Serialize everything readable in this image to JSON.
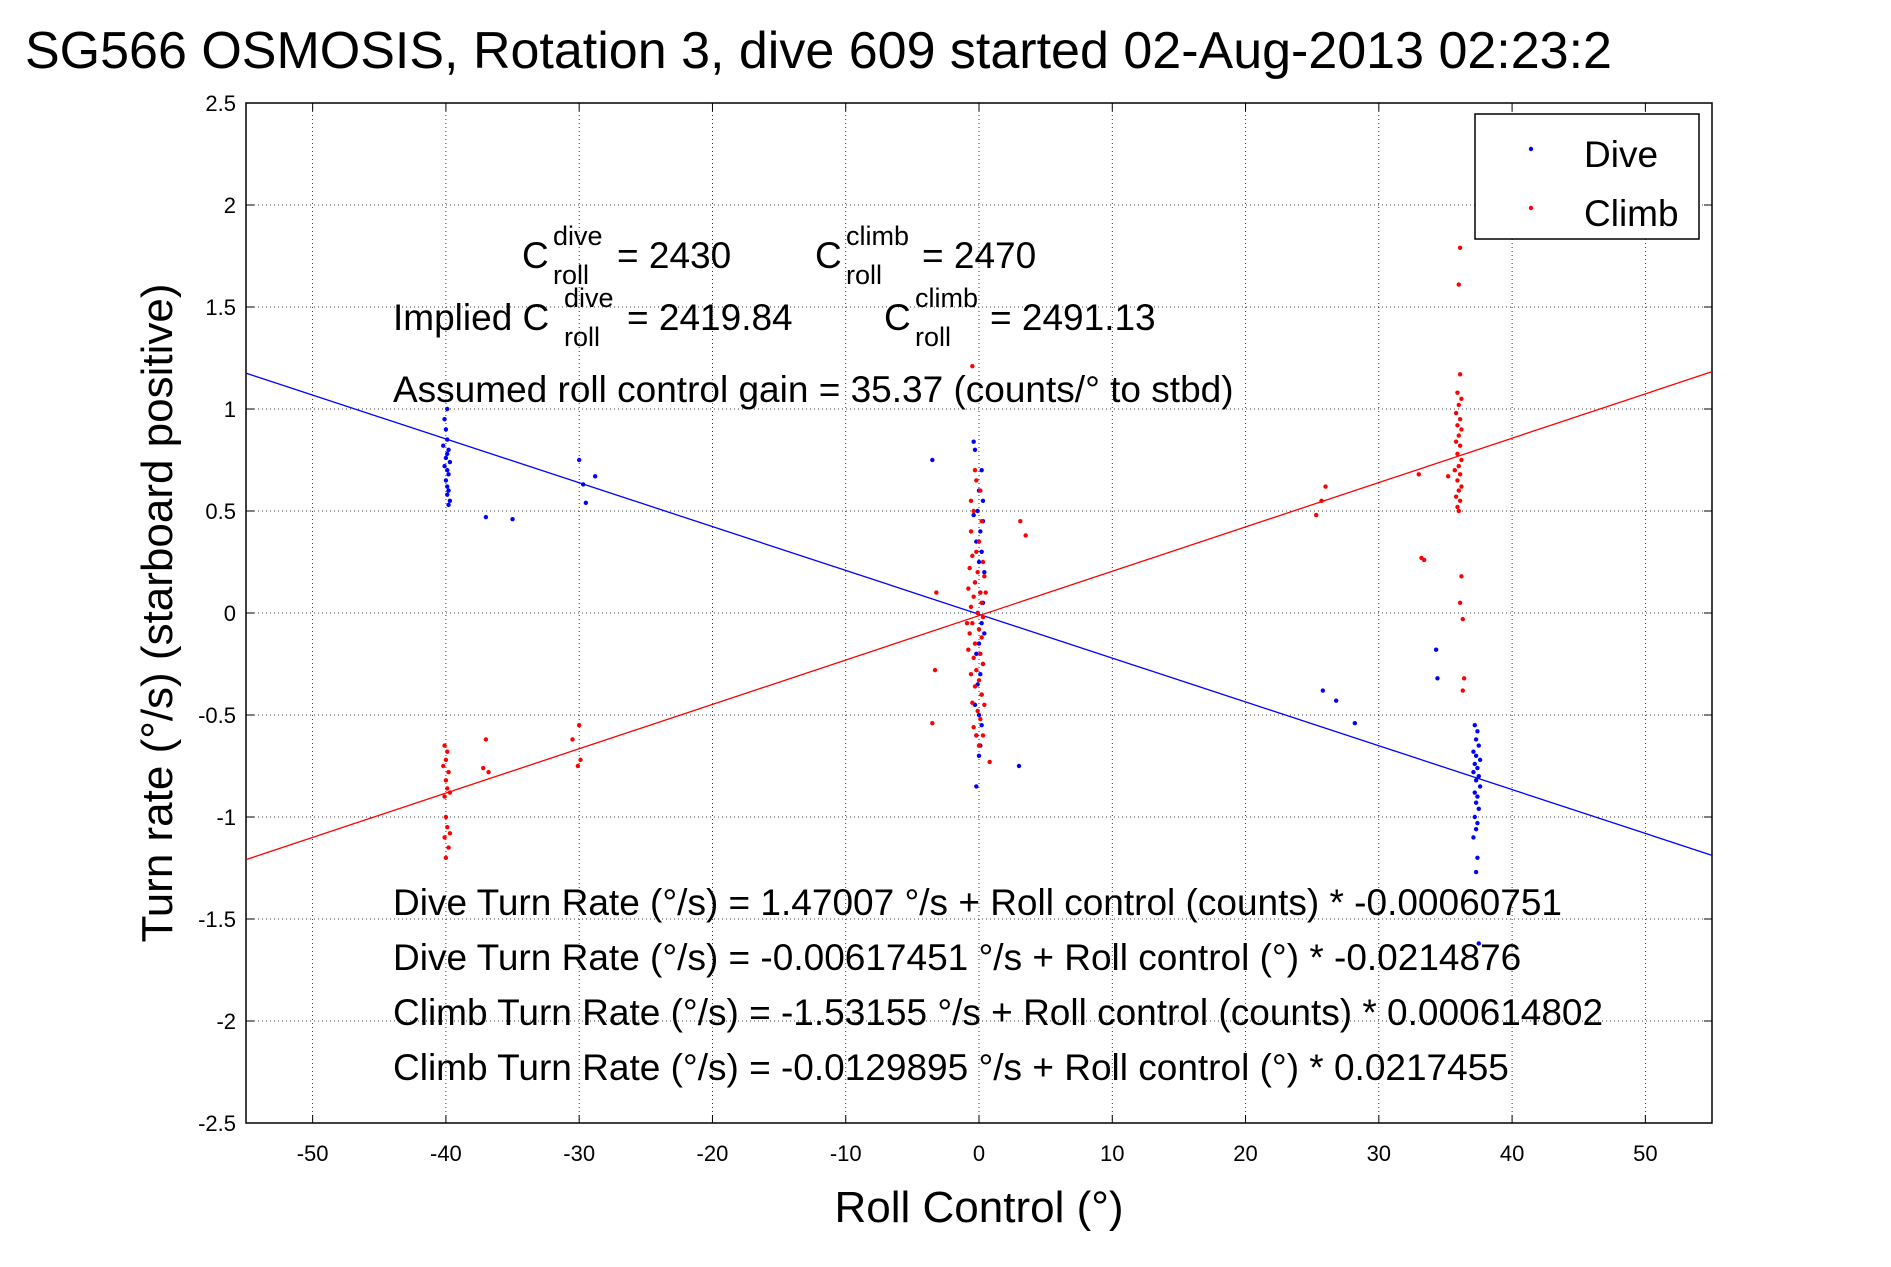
{
  "chart_data": {
    "type": "scatter",
    "title": "SG566 OSMOSIS, Rotation 3, dive 609 started 02-Aug-2013 02:23:2",
    "xlabel": "Roll Control (°)",
    "ylabel": "Turn rate (°/s)  (starboard positive)",
    "xlim": [
      -55,
      55
    ],
    "ylim": [
      -2.5,
      2.5
    ],
    "xticks": [
      -50,
      -40,
      -30,
      -20,
      -10,
      0,
      10,
      20,
      30,
      40,
      50
    ],
    "yticks": [
      -2.5,
      -2,
      -1.5,
      -1,
      -0.5,
      0,
      0.5,
      1,
      1.5,
      2,
      2.5
    ],
    "xtick_labels": [
      "-50",
      "-40",
      "-30",
      "-20",
      "-10",
      "0",
      "10",
      "20",
      "30",
      "40",
      "50"
    ],
    "ytick_labels": [
      "-2.5",
      "-2",
      "-1.5",
      "-1",
      "-0.5",
      "0",
      "0.5",
      "1",
      "1.5",
      "2",
      "2.5"
    ],
    "grid": true,
    "legend_position": "top-right",
    "series": [
      {
        "name": "Dive",
        "color": "#0000ff",
        "marker": "dot",
        "points": [
          [
            -40.1,
            0.95
          ],
          [
            -40.0,
            0.9
          ],
          [
            -39.9,
            0.85
          ],
          [
            -40.2,
            0.82
          ],
          [
            -39.8,
            0.8
          ],
          [
            -39.9,
            0.78
          ],
          [
            -40.0,
            0.76
          ],
          [
            -39.7,
            0.74
          ],
          [
            -40.1,
            0.72
          ],
          [
            -39.9,
            0.7
          ],
          [
            -39.8,
            0.68
          ],
          [
            -40.0,
            0.65
          ],
          [
            -39.9,
            0.62
          ],
          [
            -39.8,
            0.6
          ],
          [
            -39.9,
            0.58
          ],
          [
            -39.7,
            0.55
          ],
          [
            -39.8,
            0.53
          ],
          [
            -39.9,
            1.0
          ],
          [
            -37.0,
            0.47
          ],
          [
            -35.0,
            0.46
          ],
          [
            -30.0,
            0.75
          ],
          [
            -29.7,
            0.63
          ],
          [
            -29.5,
            0.54
          ],
          [
            -28.8,
            0.67
          ],
          [
            -3.5,
            0.75
          ],
          [
            -0.4,
            0.84
          ],
          [
            3.0,
            -0.75
          ],
          [
            -0.2,
            -0.85
          ],
          [
            -0.3,
            0.8
          ],
          [
            0.2,
            0.7
          ],
          [
            0.0,
            0.6
          ],
          [
            -0.1,
            0.5
          ],
          [
            0.3,
            0.45
          ],
          [
            0.1,
            0.4
          ],
          [
            -0.2,
            0.35
          ],
          [
            0.2,
            0.3
          ],
          [
            0.0,
            0.25
          ],
          [
            0.4,
            0.2
          ],
          [
            -0.3,
            0.15
          ],
          [
            0.1,
            0.1
          ],
          [
            0.3,
            0.05
          ],
          [
            -0.1,
            0.0
          ],
          [
            0.2,
            -0.05
          ],
          [
            0.4,
            -0.1
          ],
          [
            0.0,
            -0.15
          ],
          [
            -0.2,
            -0.2
          ],
          [
            0.3,
            -0.25
          ],
          [
            0.1,
            -0.3
          ],
          [
            -0.1,
            -0.35
          ],
          [
            0.2,
            -0.4
          ],
          [
            -0.3,
            -0.45
          ],
          [
            0.0,
            -0.5
          ],
          [
            0.2,
            -0.55
          ],
          [
            -0.2,
            -0.6
          ],
          [
            0.1,
            -0.65
          ],
          [
            0.0,
            -0.7
          ],
          [
            0.3,
            0.55
          ],
          [
            -0.4,
            0.48
          ],
          [
            25.8,
            -0.38
          ],
          [
            26.8,
            -0.43
          ],
          [
            28.2,
            -0.54
          ],
          [
            34.3,
            -0.18
          ],
          [
            34.4,
            -0.32
          ],
          [
            37.2,
            -0.55
          ],
          [
            37.4,
            -0.58
          ],
          [
            37.3,
            -0.62
          ],
          [
            37.5,
            -0.65
          ],
          [
            37.1,
            -0.68
          ],
          [
            37.3,
            -0.7
          ],
          [
            37.6,
            -0.72
          ],
          [
            37.2,
            -0.74
          ],
          [
            37.4,
            -0.76
          ],
          [
            37.1,
            -0.78
          ],
          [
            37.5,
            -0.8
          ],
          [
            37.3,
            -0.82
          ],
          [
            37.6,
            -0.85
          ],
          [
            37.2,
            -0.88
          ],
          [
            37.4,
            -0.9
          ],
          [
            37.3,
            -0.93
          ],
          [
            37.5,
            -0.96
          ],
          [
            37.2,
            -1.0
          ],
          [
            37.4,
            -1.03
          ],
          [
            37.3,
            -1.06
          ],
          [
            37.1,
            -1.1
          ],
          [
            37.4,
            -1.2
          ],
          [
            37.3,
            -1.27
          ],
          [
            37.5,
            -1.62
          ]
        ]
      },
      {
        "name": "Climb",
        "color": "#ff0000",
        "marker": "dot",
        "points": [
          [
            -40.1,
            -0.65
          ],
          [
            -39.9,
            -0.68
          ],
          [
            -40.0,
            -0.72
          ],
          [
            -40.2,
            -0.75
          ],
          [
            -39.8,
            -0.78
          ],
          [
            -40.0,
            -0.82
          ],
          [
            -39.9,
            -0.86
          ],
          [
            -40.1,
            -0.9
          ],
          [
            -39.7,
            -0.88
          ],
          [
            -40.0,
            -1.0
          ],
          [
            -39.9,
            -1.05
          ],
          [
            -40.1,
            -1.1
          ],
          [
            -39.8,
            -1.15
          ],
          [
            -40.0,
            -1.2
          ],
          [
            -39.7,
            -1.08
          ],
          [
            -37.0,
            -0.62
          ],
          [
            -37.2,
            -0.76
          ],
          [
            -36.8,
            -0.78
          ],
          [
            -30.5,
            -0.62
          ],
          [
            -30.0,
            -0.55
          ],
          [
            -29.9,
            -0.72
          ],
          [
            -30.1,
            -0.75
          ],
          [
            -3.5,
            -0.54
          ],
          [
            -3.3,
            -0.28
          ],
          [
            -3.2,
            0.1
          ],
          [
            -0.5,
            1.21
          ],
          [
            0.8,
            -0.73
          ],
          [
            3.1,
            0.45
          ],
          [
            3.5,
            0.38
          ],
          [
            -0.3,
            0.7
          ],
          [
            0.1,
            0.6
          ],
          [
            -0.4,
            0.5
          ],
          [
            0.2,
            0.45
          ],
          [
            -0.6,
            0.4
          ],
          [
            0.0,
            0.35
          ],
          [
            -0.2,
            0.3
          ],
          [
            -0.5,
            0.28
          ],
          [
            0.3,
            0.25
          ],
          [
            -0.7,
            0.22
          ],
          [
            -0.1,
            0.2
          ],
          [
            0.4,
            0.18
          ],
          [
            -0.3,
            0.15
          ],
          [
            -0.8,
            0.12
          ],
          [
            0.1,
            0.1
          ],
          [
            -0.4,
            0.08
          ],
          [
            0.2,
            0.05
          ],
          [
            -0.6,
            0.03
          ],
          [
            -0.1,
            0.0
          ],
          [
            0.3,
            -0.02
          ],
          [
            -0.5,
            -0.05
          ],
          [
            0.0,
            -0.08
          ],
          [
            -0.7,
            -0.1
          ],
          [
            0.2,
            -0.12
          ],
          [
            -0.3,
            -0.15
          ],
          [
            -0.8,
            -0.18
          ],
          [
            0.1,
            -0.2
          ],
          [
            -0.4,
            -0.22
          ],
          [
            0.3,
            -0.25
          ],
          [
            -0.2,
            -0.28
          ],
          [
            -0.6,
            -0.3
          ],
          [
            0.0,
            -0.33
          ],
          [
            -0.3,
            -0.36
          ],
          [
            0.2,
            -0.4
          ],
          [
            -0.5,
            -0.44
          ],
          [
            -0.1,
            -0.48
          ],
          [
            0.1,
            -0.52
          ],
          [
            -0.4,
            -0.56
          ],
          [
            -0.2,
            -0.6
          ],
          [
            0.0,
            -0.65
          ],
          [
            -0.6,
            0.55
          ],
          [
            0.4,
            -0.45
          ],
          [
            -0.9,
            -0.05
          ],
          [
            0.5,
            0.1
          ],
          [
            -0.2,
            0.65
          ],
          [
            0.3,
            -0.6
          ],
          [
            25.3,
            0.48
          ],
          [
            25.7,
            0.55
          ],
          [
            26.0,
            0.62
          ],
          [
            33.0,
            0.68
          ],
          [
            33.2,
            0.27
          ],
          [
            33.4,
            0.26
          ],
          [
            36.1,
            1.79
          ],
          [
            36.0,
            1.61
          ],
          [
            36.1,
            1.17
          ],
          [
            35.9,
            1.08
          ],
          [
            36.2,
            1.05
          ],
          [
            36.0,
            1.02
          ],
          [
            35.8,
            0.98
          ],
          [
            36.1,
            0.95
          ],
          [
            35.9,
            0.92
          ],
          [
            36.2,
            0.9
          ],
          [
            36.0,
            0.87
          ],
          [
            35.8,
            0.84
          ],
          [
            36.1,
            0.82
          ],
          [
            35.9,
            0.78
          ],
          [
            36.2,
            0.75
          ],
          [
            36.0,
            0.72
          ],
          [
            35.7,
            0.7
          ],
          [
            36.1,
            0.68
          ],
          [
            35.9,
            0.65
          ],
          [
            36.2,
            0.62
          ],
          [
            36.0,
            0.6
          ],
          [
            35.8,
            0.57
          ],
          [
            36.1,
            0.55
          ],
          [
            35.9,
            0.52
          ],
          [
            36.0,
            0.5
          ],
          [
            36.2,
            0.18
          ],
          [
            36.1,
            0.05
          ],
          [
            36.3,
            -0.03
          ],
          [
            36.4,
            -0.32
          ],
          [
            36.3,
            -0.38
          ],
          [
            35.2,
            0.67
          ]
        ]
      }
    ],
    "fit_lines": [
      {
        "name": "Dive fit",
        "color": "#0000ff",
        "intercept": -0.00617451,
        "slope": -0.0214876
      },
      {
        "name": "Climb fit",
        "color": "#ff0000",
        "intercept": -0.0129895,
        "slope": 0.0217455
      }
    ],
    "annotations": {
      "c_dive": {
        "base": "C",
        "sup": "dive",
        "sub": "roll",
        "rest": " = 2430"
      },
      "c_climb": {
        "base": "C",
        "sup": "climb",
        "sub": "roll",
        "rest": " = 2470"
      },
      "implied_dive": {
        "prefix": "Implied C",
        "sup": "dive",
        "sub": "roll",
        "rest": " = 2419.84"
      },
      "implied_climb": {
        "base": "C",
        "sup": "climb",
        "sub": "roll",
        "rest": " = 2491.13"
      },
      "gain": "Assumed roll control gain = 35.37 (counts/° to stbd)",
      "eq1": "Dive Turn Rate (°/s) = 1.47007 °/s + Roll control (counts) * -0.00060751",
      "eq2": "Dive Turn Rate (°/s) = -0.00617451 °/s + Roll control (°) * -0.0214876",
      "eq3": "Climb Turn Rate (°/s) = -1.53155 °/s + Roll control (counts) * 0.000614802",
      "eq4": "Climb Turn Rate (°/s) = -0.0129895 °/s + Roll control (°) * 0.0217455"
    }
  }
}
